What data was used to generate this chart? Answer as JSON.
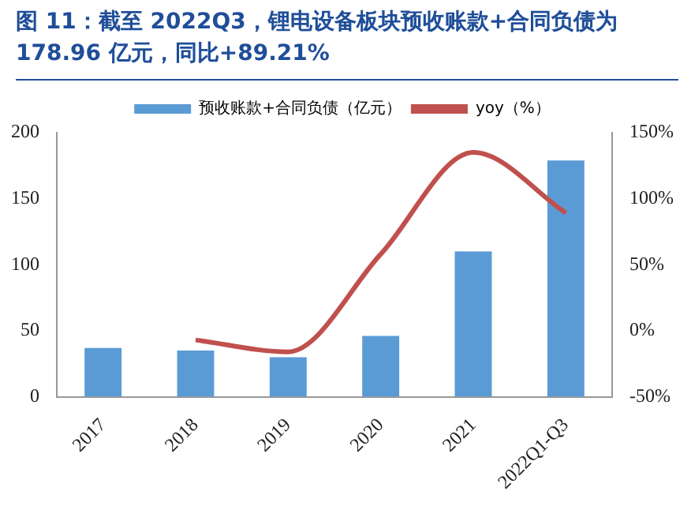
{
  "chart_data": {
    "type": "bar",
    "title": "图 11：截至 2022Q3，锂电设备板块预收账款+合同负债为 178.96 亿元，同比+89.21%",
    "categories": [
      "2017",
      "2018",
      "2019",
      "2020",
      "2021",
      "2022Q1-Q3"
    ],
    "series": [
      {
        "name": "预收账款+合同负债（亿元）",
        "color": "#5b9bd5",
        "values": [
          37,
          35,
          30,
          46,
          110,
          178.96
        ]
      },
      {
        "name": "yoy（%）",
        "type": "line",
        "axis": "y2",
        "color": "#c0504d",
        "values": [
          null,
          -7,
          -16,
          58,
          135,
          89.21
        ]
      }
    ],
    "ylim": [
      0,
      200
    ],
    "yticks": [
      0,
      50,
      100,
      150,
      200
    ],
    "y2lim": [
      -50,
      150
    ],
    "y2ticks": [
      {
        "value": -50,
        "label": "-50%"
      },
      {
        "value": 0,
        "label": "0%"
      },
      {
        "value": 50,
        "label": "50%"
      },
      {
        "value": 100,
        "label": "100%"
      },
      {
        "value": 150,
        "label": "150%"
      }
    ],
    "legend": "top",
    "grid": false,
    "marker": "none"
  }
}
